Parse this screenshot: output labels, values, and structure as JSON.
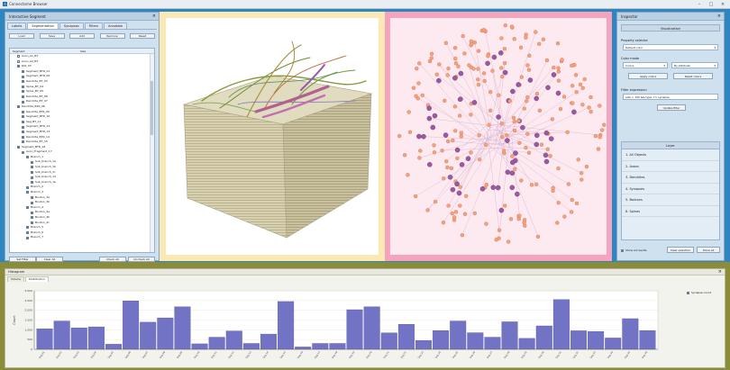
{
  "window": {
    "title": "Connectome Browser"
  },
  "left_panel": {
    "title": "Interactive Segment",
    "tabs": [
      {
        "label": "Labels"
      },
      {
        "label": "Segmentation"
      },
      {
        "label": "Synapses"
      },
      {
        "label": "Filters"
      },
      {
        "label": "Annotate"
      }
    ],
    "top_buttons": [
      {
        "label": "Load"
      },
      {
        "label": "Save"
      },
      {
        "label": "Add"
      },
      {
        "label": "Remove"
      },
      {
        "label": "Reset"
      }
    ],
    "columns": [
      "Segment",
      "Size"
    ],
    "tree": [
      {
        "label": "Axon_A1_BT",
        "indent": 1,
        "checked": false
      },
      {
        "label": "Axon_A2_BT",
        "indent": 1,
        "checked": false
      },
      {
        "label": "ROI_03",
        "indent": 1,
        "checked": true
      },
      {
        "label": "Segment_BTR_01",
        "indent": 2,
        "checked": true
      },
      {
        "label": "Segment_BTR_02",
        "indent": 2,
        "checked": true
      },
      {
        "label": "Dendrite_BT_03",
        "indent": 2,
        "checked": true
      },
      {
        "label": "Spine_BT_04",
        "indent": 2,
        "checked": true
      },
      {
        "label": "Spine_BT_05",
        "indent": 2,
        "checked": true
      },
      {
        "label": "Dendrite_BT_06",
        "indent": 2,
        "checked": true
      },
      {
        "label": "Dendrite_BT_07",
        "indent": 2,
        "checked": true
      },
      {
        "label": "Dendrite_BTR_08",
        "indent": 1,
        "checked": true
      },
      {
        "label": "Dendrite_BTR_09",
        "indent": 2,
        "checked": true
      },
      {
        "label": "Segment_BTR_10",
        "indent": 2,
        "checked": true
      },
      {
        "label": "Seg_BT_11",
        "indent": 2,
        "checked": true
      },
      {
        "label": "Segment_BTR_12",
        "indent": 2,
        "checked": true
      },
      {
        "label": "Segment_BTR_13",
        "indent": 2,
        "checked": true
      },
      {
        "label": "Dendrite_BTR_14",
        "indent": 2,
        "checked": true
      },
      {
        "label": "Dendrite_BT_15",
        "indent": 2,
        "checked": true
      },
      {
        "label": "Segment_BTR_16",
        "indent": 1,
        "checked": true
      },
      {
        "label": "Axon_Fragment_17",
        "indent": 2,
        "checked": true
      },
      {
        "label": "Branch_1",
        "indent": 3,
        "checked": true
      },
      {
        "label": "Sub_branch_1a",
        "indent": 4,
        "checked": true
      },
      {
        "label": "Sub_branch_1b",
        "indent": 4,
        "checked": true
      },
      {
        "label": "Sub_branch_1c",
        "indent": 4,
        "checked": true
      },
      {
        "label": "Sub_branch_1d",
        "indent": 4,
        "checked": true
      },
      {
        "label": "Sub_branch_1e",
        "indent": 4,
        "checked": true
      },
      {
        "label": "Branch_2",
        "indent": 3,
        "checked": true
      },
      {
        "label": "Branch_3",
        "indent": 3,
        "checked": true
      },
      {
        "label": "Bouton_3a",
        "indent": 4,
        "checked": true
      },
      {
        "label": "Bouton_3b",
        "indent": 4,
        "checked": true
      },
      {
        "label": "Branch_4",
        "indent": 3,
        "checked": true
      },
      {
        "label": "Bouton_4a",
        "indent": 4,
        "checked": true
      },
      {
        "label": "Bouton_4b",
        "indent": 4,
        "checked": true
      },
      {
        "label": "Bouton_4c",
        "indent": 4,
        "checked": true
      },
      {
        "label": "Branch_5",
        "indent": 3,
        "checked": true
      },
      {
        "label": "Branch_6",
        "indent": 3,
        "checked": true
      },
      {
        "label": "Branch_7",
        "indent": 3,
        "checked": true
      }
    ],
    "bottom_buttons": [
      {
        "label": "Set Filter"
      },
      {
        "label": "Clear All"
      },
      {
        "label": "Check All"
      },
      {
        "label": "Uncheck All"
      }
    ]
  },
  "right_panel": {
    "title": "Inspector",
    "section_title": "Visualization",
    "label_property": "Property selector",
    "property_value": "Default color",
    "label_mode": "Color mode",
    "mode_select": "Colors",
    "mode_select2": "By attribute",
    "btn_apply": "Apply colors",
    "btn_reset": "Reset colors",
    "label_description": "Filter expression",
    "description_value": "size > 150 && type == synapse",
    "btn_update": "Update filter",
    "layers_title": "Layer",
    "layers": [
      {
        "label": "1. All Objects"
      },
      {
        "label": "2. Axons"
      },
      {
        "label": "3. Dendrites"
      },
      {
        "label": "4. Synapses"
      },
      {
        "label": "5. Boutons"
      },
      {
        "label": "6. Spines"
      }
    ],
    "footer_check": "Show all results",
    "footer_btn1": "Clear selection",
    "footer_btn2": "Show all"
  },
  "hist_panel": {
    "title": "Histogram",
    "tabs": [
      {
        "label": "Volume"
      },
      {
        "label": "Distribution"
      }
    ],
    "legend_label": "Synapse count"
  },
  "chart_data": {
    "type": "bar",
    "title": "",
    "xlabel": "",
    "ylabel": "Count",
    "ylim": [
      0,
      3000
    ],
    "ytick_labels": [
      "3,000",
      "2,500",
      "2,000",
      "1,500",
      "1,000",
      "500",
      "0"
    ],
    "categories": [
      "Seg 01",
      "Seg 02",
      "Seg 03",
      "Seg 04",
      "Seg 05",
      "Seg 06",
      "Seg 07",
      "Seg 08",
      "Seg 09",
      "Seg 10",
      "Seg 11",
      "Seg 12",
      "Seg 13",
      "Seg 14",
      "Seg 15",
      "Seg 16",
      "Seg 17",
      "Seg 18",
      "Seg 19",
      "Seg 20",
      "Seg 21",
      "Seg 22",
      "Seg 23",
      "Seg 24",
      "Seg 25",
      "Seg 26",
      "Seg 27",
      "Seg 28",
      "Seg 29",
      "Seg 30",
      "Seg 31",
      "Seg 32",
      "Seg 33",
      "Seg 34",
      "Seg 35",
      "Seg 36"
    ],
    "values": [
      1050,
      1450,
      1100,
      1150,
      260,
      2480,
      1390,
      1610,
      2180,
      280,
      620,
      940,
      300,
      780,
      2450,
      120,
      300,
      300,
      2030,
      2180,
      840,
      1280,
      450,
      960,
      1450,
      850,
      620,
      1410,
      560,
      1200,
      2550,
      950,
      910,
      580,
      1570,
      960
    ],
    "bar_color": "#7373c6",
    "legend": "top-right"
  }
}
